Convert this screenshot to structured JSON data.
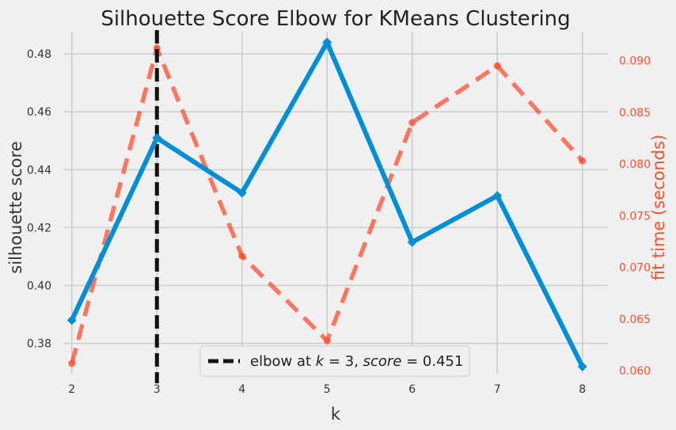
{
  "chart_data": {
    "type": "line",
    "title": "Silhouette Score Elbow for KMeans Clustering",
    "xlabel": "k",
    "ylabel": "silhouette score",
    "y2label": "fit time (seconds)",
    "x": [
      2,
      3,
      4,
      5,
      6,
      7,
      8
    ],
    "series": [
      {
        "axis": "left",
        "style": "solid",
        "marker": "diamond",
        "color": "#008fd5",
        "values": [
          0.388,
          0.451,
          0.432,
          0.484,
          0.415,
          0.431,
          0.372
        ]
      },
      {
        "axis": "right",
        "style": "dashed",
        "marker": "circle",
        "color": "#fc4f30",
        "values": [
          0.0607,
          0.0912,
          0.0711,
          0.0629,
          0.084,
          0.0895,
          0.0803
        ]
      }
    ],
    "xlim": [
      1.9,
      8.3
    ],
    "ylim": [
      0.3695,
      0.4877
    ],
    "y2lim": [
      0.0597,
      0.0928
    ],
    "xticks": [
      "2",
      "3",
      "4",
      "5",
      "6",
      "7",
      "8"
    ],
    "yticks": [
      "0.38",
      "0.40",
      "0.42",
      "0.44",
      "0.46",
      "0.48"
    ],
    "y2ticks": [
      "0.060",
      "0.065",
      "0.070",
      "0.075",
      "0.080",
      "0.085",
      "0.090"
    ],
    "elbow": {
      "k": 3,
      "color": "#111111",
      "legend_prefix": "elbow at ",
      "legend_k": "k",
      "legend_mid": " = 3, ",
      "legend_score": "score",
      "legend_end": " = 0.451"
    },
    "legend_position": "lower center",
    "grid": true,
    "background": "#f0f0f0"
  }
}
